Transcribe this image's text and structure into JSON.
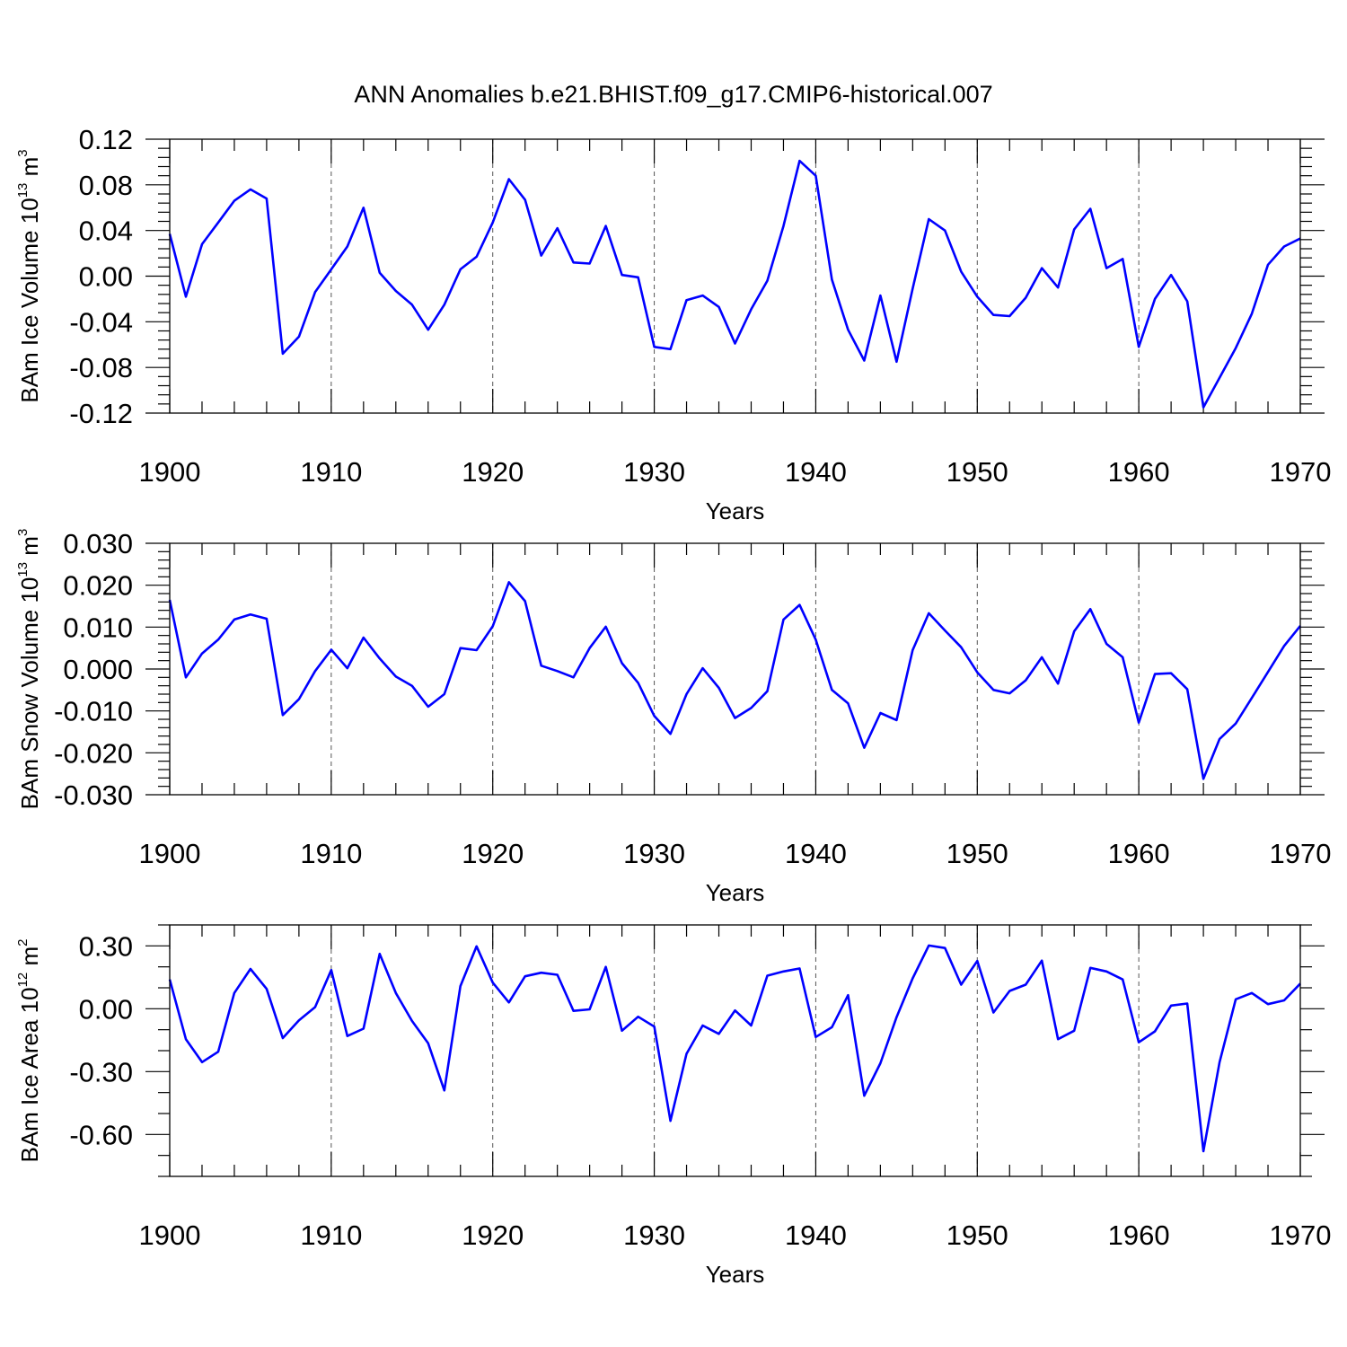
{
  "title": "ANN Anomalies b.e21.BHIST.f09_g17.CMIP6-historical.007",
  "line_color": "#0000ff",
  "chart_data": [
    {
      "type": "line",
      "ylabel": "BAm Ice Volume 10",
      "ylabel_exponent": "13",
      "ylabel_unit": "m",
      "ylabel_unit_exponent": "3",
      "xlabel": "Years",
      "xlim": [
        1900,
        1970
      ],
      "ylim": [
        -0.12,
        0.12
      ],
      "xticks": [
        1900,
        1910,
        1920,
        1930,
        1940,
        1950,
        1960,
        1970
      ],
      "xtick_labels": [
        "1900",
        "1910",
        "1920",
        "1930",
        "1940",
        "1950",
        "1960",
        "1970"
      ],
      "yticks": [
        -0.12,
        -0.08,
        -0.04,
        0.0,
        0.04,
        0.08,
        0.12
      ],
      "ytick_labels": [
        "-0.12",
        "-0.08",
        "-0.04",
        "0.00",
        "0.04",
        "0.08",
        "0.12"
      ],
      "series": [
        {
          "name": "Ice Volume",
          "x": [
            1900,
            1901,
            1902,
            1903,
            1904,
            1905,
            1906,
            1907,
            1908,
            1909,
            1910,
            1911,
            1912,
            1913,
            1914,
            1915,
            1916,
            1917,
            1918,
            1919,
            1920,
            1921,
            1922,
            1923,
            1924,
            1925,
            1926,
            1927,
            1928,
            1929,
            1930,
            1931,
            1932,
            1933,
            1934,
            1935,
            1936,
            1937,
            1938,
            1939,
            1940,
            1941,
            1942,
            1943,
            1944,
            1945,
            1946,
            1947,
            1948,
            1949,
            1950,
            1951,
            1952,
            1953,
            1954,
            1955,
            1956,
            1957,
            1958,
            1959,
            1960,
            1961,
            1962,
            1963,
            1964,
            1965,
            1966,
            1967,
            1968,
            1969,
            1970
          ],
          "values": [
            0.037,
            -0.018,
            0.028,
            0.047,
            0.066,
            0.076,
            0.068,
            -0.068,
            -0.053,
            -0.014,
            0.006,
            0.026,
            0.06,
            0.003,
            -0.013,
            -0.025,
            -0.047,
            -0.025,
            0.006,
            0.017,
            0.047,
            0.085,
            0.067,
            0.018,
            0.042,
            0.012,
            0.011,
            0.044,
            0.001,
            -0.001,
            -0.062,
            -0.064,
            -0.021,
            -0.017,
            -0.027,
            -0.059,
            -0.029,
            -0.004,
            0.044,
            0.101,
            0.088,
            -0.003,
            -0.047,
            -0.074,
            -0.017,
            -0.075,
            -0.011,
            0.05,
            0.04,
            0.004,
            -0.018,
            -0.034,
            -0.035,
            -0.019,
            0.007,
            -0.01,
            0.041,
            0.059,
            0.007,
            0.015,
            -0.062,
            -0.02,
            0.001,
            -0.022,
            -0.115,
            -0.089,
            -0.063,
            -0.033,
            0.01,
            0.026,
            0.033
          ]
        }
      ]
    },
    {
      "type": "line",
      "ylabel": "BAm Snow Volume 10",
      "ylabel_exponent": "13",
      "ylabel_unit": "m",
      "ylabel_unit_exponent": "3",
      "xlabel": "Years",
      "xlim": [
        1900,
        1970
      ],
      "ylim": [
        -0.03,
        0.03
      ],
      "xticks": [
        1900,
        1910,
        1920,
        1930,
        1940,
        1950,
        1960,
        1970
      ],
      "xtick_labels": [
        "1900",
        "1910",
        "1920",
        "1930",
        "1940",
        "1950",
        "1960",
        "1970"
      ],
      "yticks": [
        -0.03,
        -0.02,
        -0.01,
        0.0,
        0.01,
        0.02,
        0.03
      ],
      "ytick_labels": [
        "-0.030",
        "-0.020",
        "-0.010",
        "0.000",
        "0.010",
        "0.020",
        "0.030"
      ],
      "series": [
        {
          "name": "Snow Volume",
          "x": [
            1900,
            1901,
            1902,
            1903,
            1904,
            1905,
            1906,
            1907,
            1908,
            1909,
            1910,
            1911,
            1912,
            1913,
            1914,
            1915,
            1916,
            1917,
            1918,
            1919,
            1920,
            1921,
            1922,
            1923,
            1924,
            1925,
            1926,
            1927,
            1928,
            1929,
            1930,
            1931,
            1932,
            1933,
            1934,
            1935,
            1936,
            1937,
            1938,
            1939,
            1940,
            1941,
            1942,
            1943,
            1944,
            1945,
            1946,
            1947,
            1948,
            1949,
            1950,
            1951,
            1952,
            1953,
            1954,
            1955,
            1956,
            1957,
            1958,
            1959,
            1960,
            1961,
            1962,
            1963,
            1964,
            1965,
            1966,
            1967,
            1968,
            1969,
            1970
          ],
          "values": [
            0.0165,
            -0.002,
            0.0037,
            0.007,
            0.0118,
            0.013,
            0.012,
            -0.011,
            -0.0072,
            -0.0005,
            0.0046,
            0.0002,
            0.0075,
            0.0025,
            -0.0018,
            -0.004,
            -0.009,
            -0.006,
            0.005,
            0.0045,
            0.0102,
            0.0207,
            0.0162,
            0.0008,
            -0.0005,
            -0.002,
            0.005,
            0.0101,
            0.0014,
            -0.0033,
            -0.0112,
            -0.0155,
            -0.006,
            0.0002,
            -0.0045,
            -0.0117,
            -0.0093,
            -0.0053,
            0.0118,
            0.0153,
            0.007,
            -0.005,
            -0.0082,
            -0.0188,
            -0.0105,
            -0.0122,
            0.0045,
            0.0133,
            0.0092,
            0.0052,
            -0.0008,
            -0.005,
            -0.0058,
            -0.0027,
            0.0028,
            -0.0035,
            0.009,
            0.0143,
            0.006,
            0.0028,
            -0.0128,
            -0.0012,
            -0.001,
            -0.0048,
            -0.0262,
            -0.0167,
            -0.013,
            -0.0069,
            -0.0007,
            0.0055,
            0.0103
          ]
        }
      ]
    },
    {
      "type": "line",
      "ylabel": "BAm Ice Area 10",
      "ylabel_exponent": "12",
      "ylabel_unit": "m",
      "ylabel_unit_exponent": "2",
      "xlabel": "Years",
      "xlim": [
        1900,
        1970
      ],
      "ylim": [
        -0.8,
        0.4
      ],
      "xticks": [
        1900,
        1910,
        1920,
        1930,
        1940,
        1950,
        1960,
        1970
      ],
      "xtick_labels": [
        "1900",
        "1910",
        "1920",
        "1930",
        "1940",
        "1950",
        "1960",
        "1970"
      ],
      "yticks": [
        -0.6,
        -0.3,
        0.0,
        0.3
      ],
      "ytick_labels": [
        "-0.60",
        "-0.30",
        "0.00",
        "0.30"
      ],
      "series": [
        {
          "name": "Ice Area",
          "x": [
            1900,
            1901,
            1902,
            1903,
            1904,
            1905,
            1906,
            1907,
            1908,
            1909,
            1910,
            1911,
            1912,
            1913,
            1914,
            1915,
            1916,
            1917,
            1918,
            1919,
            1920,
            1921,
            1922,
            1923,
            1924,
            1925,
            1926,
            1927,
            1928,
            1929,
            1930,
            1931,
            1932,
            1933,
            1934,
            1935,
            1936,
            1937,
            1938,
            1939,
            1940,
            1941,
            1942,
            1943,
            1944,
            1945,
            1946,
            1947,
            1948,
            1949,
            1950,
            1951,
            1952,
            1953,
            1954,
            1955,
            1956,
            1957,
            1958,
            1959,
            1960,
            1961,
            1962,
            1963,
            1964,
            1965,
            1966,
            1967,
            1968,
            1969,
            1970
          ],
          "values": [
            0.14,
            -0.145,
            -0.255,
            -0.205,
            0.075,
            0.19,
            0.095,
            -0.14,
            -0.055,
            0.008,
            0.185,
            -0.13,
            -0.095,
            0.262,
            0.075,
            -0.058,
            -0.165,
            -0.39,
            0.108,
            0.298,
            0.125,
            0.03,
            0.155,
            0.172,
            0.162,
            -0.01,
            -0.003,
            0.2,
            -0.105,
            -0.038,
            -0.085,
            -0.535,
            -0.215,
            -0.08,
            -0.12,
            -0.008,
            -0.08,
            0.158,
            0.178,
            0.192,
            -0.135,
            -0.088,
            0.065,
            -0.415,
            -0.26,
            -0.04,
            0.145,
            0.302,
            0.29,
            0.115,
            0.228,
            -0.018,
            0.085,
            0.115,
            0.23,
            -0.145,
            -0.105,
            0.195,
            0.178,
            0.14,
            -0.16,
            -0.108,
            0.015,
            0.025,
            -0.68,
            -0.255,
            0.045,
            0.075,
            0.022,
            0.04,
            0.12
          ]
        }
      ]
    }
  ]
}
